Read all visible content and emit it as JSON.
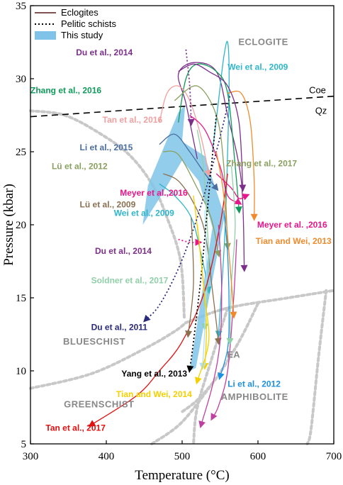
{
  "chart_data": {
    "type": "line",
    "title": "",
    "xlabel": "Temperature (°C)",
    "ylabel": "Pressure (kbar)",
    "xlim": [
      300,
      700
    ],
    "ylim": [
      5,
      35
    ],
    "xticks": [
      300,
      400,
      500,
      600,
      700
    ],
    "yticks": [
      5,
      10,
      15,
      20,
      25,
      30,
      35
    ],
    "grid": false,
    "legend_position": "top-left",
    "legend": [
      {
        "label": "Eclogites",
        "style": "solid",
        "color": "#5a1a1a"
      },
      {
        "label": "Pelitic schists",
        "style": "dotted",
        "color": "#000000"
      },
      {
        "label": "This study",
        "style": "band",
        "color": "#7fc4e8"
      }
    ],
    "facies_labels": [
      {
        "text": "ECLOGITE",
        "x": 640,
        "y": 32.3
      },
      {
        "text": "BLUESCHIST",
        "x": 343,
        "y": 11.8
      },
      {
        "text": "GREENSCHIST",
        "x": 344,
        "y": 7.5
      },
      {
        "text": "AMPHIBOLITE",
        "x": 640,
        "y": 8.0
      },
      {
        "text": "EA",
        "x": 559,
        "y": 10.9
      }
    ],
    "coe_qz": {
      "upper": "Coe",
      "lower": "Qz",
      "line": [
        [
          300,
          27.4
        ],
        [
          700,
          28.8
        ]
      ]
    },
    "facies_boundaries": [
      [
        [
          300,
          27.8
        ],
        [
          345,
          27.5
        ],
        [
          390,
          26.3
        ],
        [
          430,
          24.8
        ],
        [
          460,
          22.8
        ],
        [
          480,
          20.5
        ],
        [
          498,
          17.5
        ],
        [
          503,
          13.5
        ]
      ],
      [
        [
          300,
          8.8
        ],
        [
          380,
          9.8
        ],
        [
          450,
          11.5
        ],
        [
          490,
          12.7
        ],
        [
          505,
          13.3
        ]
      ],
      [
        [
          505,
          13.3
        ],
        [
          560,
          14.3
        ],
        [
          640,
          15.0
        ],
        [
          700,
          15.5
        ]
      ],
      [
        [
          560,
          14.3
        ],
        [
          540,
          11.0
        ],
        [
          520,
          7.5
        ],
        [
          515,
          5.0
        ]
      ],
      [
        [
          690,
          15.5
        ],
        [
          680,
          11.0
        ],
        [
          670,
          6.0
        ],
        [
          665,
          5.0
        ]
      ],
      [
        [
          600,
          14.6
        ],
        [
          575,
          12.0
        ],
        [
          545,
          9.5
        ],
        [
          520,
          8.0
        ],
        [
          500,
          7.2
        ]
      ],
      [
        [
          460,
          5.0
        ],
        [
          500,
          6.5
        ],
        [
          545,
          9.5
        ]
      ]
    ],
    "this_study_band": [
      [
        448,
        20.0
      ],
      [
        455,
        22.7
      ],
      [
        495,
        27.7
      ],
      [
        504,
        28.2
      ],
      [
        500,
        25.7
      ],
      [
        530,
        24.7
      ],
      [
        556,
        20.6
      ],
      [
        518,
        10.2
      ],
      [
        510,
        10.0
      ],
      [
        540,
        19.8
      ],
      [
        522,
        23.0
      ],
      [
        500,
        24.4
      ],
      [
        470,
        21.8
      ],
      [
        448,
        20.0
      ]
    ],
    "series": [
      {
        "name": "Du et al., 2014",
        "type": "eclogite",
        "color": "#7b2f8a",
        "points": [
          [
            520,
            24.5
          ],
          [
            505,
            28.3
          ],
          [
            495,
            30.3
          ],
          [
            515,
            31.1
          ],
          [
            545,
            30.5
          ],
          [
            560,
            27.5
          ],
          [
            578,
            23.0
          ],
          [
            582,
            17.0
          ]
        ]
      },
      {
        "name": "Wei et al., 2009",
        "type": "eclogite",
        "color": "#2fb5c9",
        "points": [
          [
            540,
            25.0
          ],
          [
            548,
            28.5
          ],
          [
            555,
            31.5
          ],
          [
            560,
            32.5
          ],
          [
            562,
            30.0
          ],
          [
            560,
            25.0
          ],
          [
            556,
            19.0
          ],
          [
            548,
            12.5
          ]
        ]
      },
      {
        "name": "Zhang et al., 2016",
        "type": "eclogite",
        "color": "#0f9a5a",
        "points": [
          [
            495,
            27.0
          ],
          [
            505,
            30.0
          ],
          [
            520,
            31.0
          ],
          [
            545,
            30.5
          ],
          [
            560,
            29.0
          ],
          [
            570,
            24.0
          ],
          [
            575,
            21.0
          ]
        ]
      },
      {
        "name": "Tan et al., 2016",
        "type": "eclogite",
        "color": "#f2a0a0",
        "points": [
          [
            470,
            27.0
          ],
          [
            480,
            29.0
          ],
          [
            495,
            29.5
          ],
          [
            510,
            28.5
          ],
          [
            525,
            26.0
          ],
          [
            535,
            23.5
          ]
        ]
      },
      {
        "name": "Li et al., 2015",
        "type": "eclogite",
        "color": "#4a6fa0",
        "points": [
          [
            470,
            25.5
          ],
          [
            490,
            26.2
          ],
          [
            510,
            25.0
          ],
          [
            530,
            23.5
          ],
          [
            545,
            22.5
          ]
        ]
      },
      {
        "name": "Lü et al., 2012",
        "type": "eclogite",
        "color": "#8aa060",
        "points": [
          [
            475,
            25.0
          ],
          [
            495,
            24.8
          ],
          [
            520,
            22.5
          ],
          [
            538,
            20.5
          ],
          [
            548,
            18.0
          ]
        ]
      },
      {
        "name": "Zhang et al., 2017",
        "type": "eclogite",
        "color": "#8aa060",
        "points": [
          [
            490,
            28.5
          ],
          [
            520,
            29.5
          ],
          [
            545,
            27.5
          ],
          [
            555,
            24.0
          ],
          [
            560,
            18.5
          ]
        ]
      },
      {
        "name": "Meyer et al., 2016",
        "type": "eclogite",
        "color": "#e8168b",
        "points": [
          [
            510,
            27.5
          ],
          [
            530,
            26.5
          ],
          [
            550,
            24.0
          ],
          [
            560,
            22.0
          ],
          [
            575,
            21.5
          ]
        ]
      },
      {
        "name": "Lü et al., 2009",
        "type": "eclogite",
        "color": "#8a7050",
        "points": [
          [
            475,
            23.5
          ],
          [
            495,
            23.0
          ],
          [
            515,
            21.5
          ],
          [
            530,
            19.5
          ],
          [
            540,
            15.5
          ],
          [
            548,
            12.0
          ]
        ]
      },
      {
        "name": "Wei et al., 2009 (b)",
        "type": "eclogite",
        "color": "#2fb5c9",
        "points": [
          [
            470,
            22.8
          ],
          [
            490,
            22.0
          ],
          [
            512,
            20.5
          ],
          [
            525,
            18.0
          ],
          [
            535,
            15.5
          ]
        ]
      },
      {
        "name": "Meyer et al.,2016",
        "type": "eclogite",
        "color": "#e8168b",
        "points": [
          [
            545,
            23.5
          ],
          [
            565,
            22.5
          ],
          [
            575,
            21.8
          ],
          [
            585,
            22.0
          ]
        ]
      },
      {
        "name": "Tian and Wei, 2013",
        "type": "eclogite",
        "color": "#f08a2c",
        "points": [
          [
            560,
            29.0
          ],
          [
            578,
            29.0
          ],
          [
            590,
            27.0
          ],
          [
            595,
            23.0
          ],
          [
            595,
            20.5
          ]
        ]
      },
      {
        "name": "Du et al., 2014 (b)",
        "type": "eclogite",
        "color": "#7b2f8a",
        "points": [
          [
            495,
            30.5
          ],
          [
            515,
            31.0
          ],
          [
            535,
            30.5
          ],
          [
            560,
            29.5
          ],
          [
            575,
            27.0
          ],
          [
            580,
            22.5
          ]
        ]
      },
      {
        "name": "Soldner et al., 2017",
        "type": "eclogite",
        "color": "#8fd0a8",
        "points": [
          [
            520,
            26.5
          ],
          [
            528,
            24.0
          ],
          [
            533,
            20.0
          ],
          [
            535,
            17.0
          ],
          [
            530,
            13.0
          ]
        ]
      },
      {
        "name": "Li et al., 2012",
        "type": "eclogite",
        "color": "#1e90e0",
        "points": [
          [
            555,
            21.0
          ],
          [
            560,
            18.0
          ],
          [
            562,
            14.0
          ],
          [
            560,
            11.5
          ],
          [
            550,
            9.6
          ]
        ]
      },
      {
        "name": "Tian and Wei, 2014",
        "type": "eclogite",
        "color": "#f5d000",
        "points": [
          [
            515,
            22.0
          ],
          [
            522,
            19.0
          ],
          [
            528,
            16.0
          ],
          [
            532,
            13.0
          ],
          [
            530,
            10.3
          ]
        ]
      },
      {
        "name": "Yang et al., 2013",
        "type": "eclogite",
        "color": "#b0e0ff",
        "points": [
          [
            530,
            21.0
          ],
          [
            532,
            17.0
          ],
          [
            530,
            13.0
          ],
          [
            527,
            10.3
          ]
        ]
      },
      {
        "name": "Tan et al., 2017",
        "type": "eclogite",
        "color": "#e01010",
        "points": [
          [
            560,
            23.5
          ],
          [
            550,
            20.0
          ],
          [
            530,
            15.5
          ],
          [
            500,
            12.0
          ],
          [
            470,
            10.0
          ],
          [
            440,
            8.3
          ],
          [
            380,
            6.3
          ]
        ]
      },
      {
        "name": "Du et al., 2011",
        "type": "pelitic",
        "color": "#2a2a7a",
        "points": [
          [
            563,
            28.8
          ],
          [
            545,
            25.0
          ],
          [
            520,
            20.5
          ],
          [
            495,
            17.0
          ],
          [
            470,
            14.5
          ],
          [
            452,
            13.5
          ]
        ]
      },
      {
        "name": "Du et al., 2014 (pelitic)",
        "type": "pelitic",
        "color": "#7b2f8a",
        "points": [
          [
            505,
            32.0
          ],
          [
            510,
            29.5
          ],
          [
            512,
            27.0
          ]
        ]
      },
      {
        "name": "Du et al., 2014 (pelitic b)",
        "type": "pelitic",
        "color": "#e8168b",
        "points": [
          [
            495,
            19.0
          ],
          [
            510,
            18.8
          ],
          [
            522,
            18.8
          ]
        ]
      },
      {
        "name": "Yang et al., 2013 (pelitic)",
        "type": "pelitic",
        "color": "#000000",
        "points": [
          [
            545,
            27.5
          ],
          [
            535,
            22.0
          ],
          [
            525,
            16.5
          ],
          [
            515,
            12.0
          ],
          [
            510,
            10.1
          ]
        ]
      },
      {
        "name": "Li et al., 2012 (b)",
        "type": "eclogite",
        "color": "#c040a0",
        "points": [
          [
            548,
            20.0
          ],
          [
            552,
            16.0
          ],
          [
            550,
            12.0
          ],
          [
            540,
            9.0
          ],
          [
            525,
            6.3
          ]
        ]
      },
      {
        "name": "Li et al., 2012 (c)",
        "type": "eclogite",
        "color": "#c040a0",
        "points": [
          [
            572,
            19.0
          ],
          [
            568,
            15.0
          ],
          [
            560,
            10.0
          ],
          [
            548,
            7.6
          ],
          [
            540,
            6.8
          ]
        ]
      },
      {
        "name": "Tian and Wei, 2014 (b)",
        "type": "eclogite",
        "color": "#f5d000",
        "points": [
          [
            520,
            20.0
          ],
          [
            530,
            15.0
          ],
          [
            535,
            12.0
          ],
          [
            520,
            9.3
          ]
        ]
      },
      {
        "name": "Soldner et al., 2017 (b)",
        "type": "eclogite",
        "color": "#8fd0a8",
        "points": [
          [
            565,
            24.0
          ],
          [
            570,
            20.0
          ],
          [
            565,
            16.0
          ],
          [
            563,
            12.0
          ]
        ]
      },
      {
        "name": "Lü et al., 2009 (b)",
        "type": "eclogite",
        "color": "#8a7050",
        "points": [
          [
            512,
            20.5
          ],
          [
            515,
            16.0
          ],
          [
            508,
            12.5
          ]
        ]
      },
      {
        "name": "Tian and Wei, 2013 (b)",
        "type": "eclogite",
        "color": "#f08a2c",
        "points": [
          [
            545,
            25.0
          ],
          [
            555,
            22.0
          ],
          [
            565,
            16.0
          ],
          [
            568,
            13.8
          ]
        ]
      }
    ],
    "annotations": [
      {
        "text": "Du et al., 2014",
        "x": 360,
        "y": 31.6,
        "color": "#7b2f8a"
      },
      {
        "text": "Wei et al., 2009",
        "x": 560,
        "y": 30.6,
        "color": "#2fb5c9"
      },
      {
        "text": "Zhang et al., 2016",
        "x": 300,
        "y": 29.0,
        "color": "#0f9a5a"
      },
      {
        "text": "Tan et al., 2016",
        "x": 395,
        "y": 27.0,
        "color": "#f2a0a0"
      },
      {
        "text": "Li et al., 2015",
        "x": 365,
        "y": 25.1,
        "color": "#4a6fa0"
      },
      {
        "text": "Lü et al., 2012",
        "x": 328,
        "y": 23.8,
        "color": "#8aa060"
      },
      {
        "text": "Zhang et al., 2017",
        "x": 558,
        "y": 24.0,
        "color": "#8aa060"
      },
      {
        "text": "Meyer et al.,2016",
        "x": 418,
        "y": 22.0,
        "color": "#e8168b"
      },
      {
        "text": "Lü et al., 2009",
        "x": 365,
        "y": 21.2,
        "color": "#8a7050"
      },
      {
        "text": "Wei et al., 2009",
        "x": 410,
        "y": 20.6,
        "color": "#2fb5c9"
      },
      {
        "text": "Meyer et al. ,2016",
        "x": 599,
        "y": 19.8,
        "color": "#e8168b"
      },
      {
        "text": "Tian and Wei, 2013",
        "x": 597,
        "y": 18.7,
        "color": "#f08a2c"
      },
      {
        "text": "Du et al., 2014",
        "x": 385,
        "y": 18.0,
        "color": "#7b2f8a"
      },
      {
        "text": "Soldner et al., 2017",
        "x": 380,
        "y": 16.0,
        "color": "#8fd0a8"
      },
      {
        "text": "Du et al., 2011",
        "x": 380,
        "y": 12.8,
        "color": "#2a2a7a"
      },
      {
        "text": "Yang et al., 2013",
        "x": 420,
        "y": 9.6,
        "color": "#000000"
      },
      {
        "text": "Li et al., 2012",
        "x": 560,
        "y": 8.9,
        "color": "#1e90e0"
      },
      {
        "text": "Tian and Wei, 2014",
        "x": 413,
        "y": 8.2,
        "color": "#f5d000"
      },
      {
        "text": "Tan et al., 2017",
        "x": 320,
        "y": 5.9,
        "color": "#e01010"
      }
    ]
  }
}
